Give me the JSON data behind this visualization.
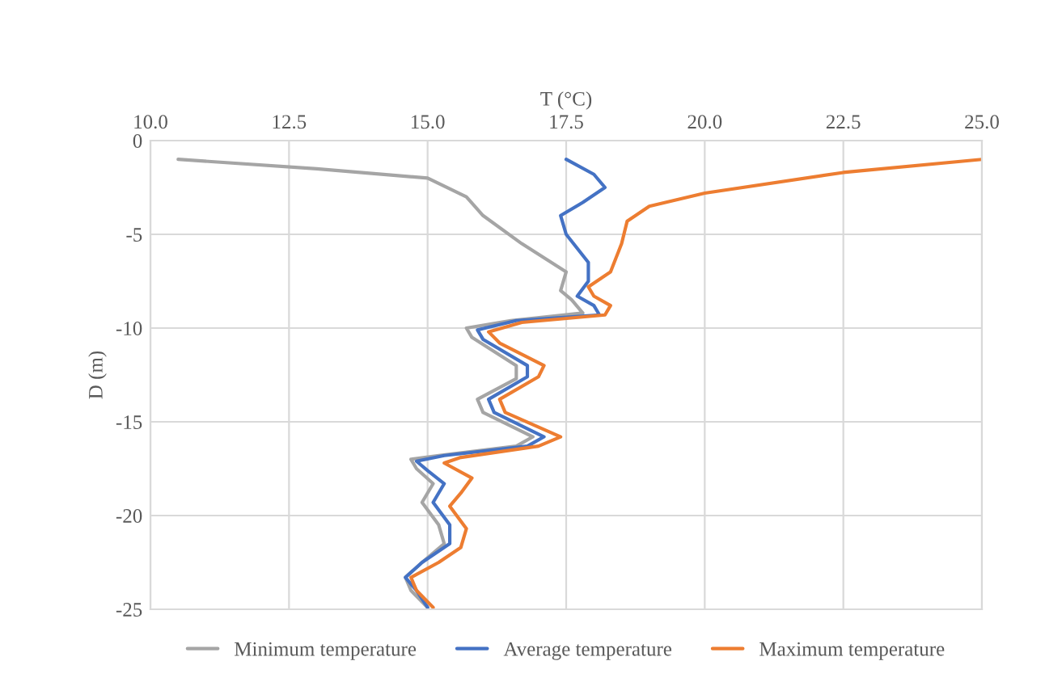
{
  "chart_data": {
    "type": "line",
    "xlabel": "T (°C)",
    "ylabel": "D (m)",
    "xlim": [
      10,
      25
    ],
    "xticks": [
      {
        "value": 10,
        "label": "10.0"
      },
      12.5,
      {
        "value": 15,
        "label": "15.0"
      },
      17.5,
      {
        "value": 20,
        "label": "20.0"
      },
      22.5,
      {
        "value": 25,
        "label": "25.0"
      }
    ],
    "ylim": [
      -25,
      0
    ],
    "yticks": [
      -25,
      -20,
      -15,
      -10,
      -5,
      0
    ],
    "grid": true,
    "legend": "bottom",
    "marker": "none",
    "line_style": "solid",
    "series": [
      {
        "name": "Minimum temperature",
        "color": "#a5a5a5",
        "x": [
          10.5,
          13,
          15,
          15.7,
          16,
          16.7,
          17.5,
          17.4,
          17.6,
          17.8,
          16.5,
          15.7,
          15.8,
          16.6,
          16.6,
          15.9,
          16,
          16.9,
          16.6,
          15.2,
          14.7,
          14.8,
          15.1,
          14.9,
          15.2,
          15.3,
          14.9,
          14.6,
          14.7,
          15
        ],
        "values": [
          -1,
          -1.5,
          -2,
          -3,
          -4,
          -5.5,
          -7,
          -8,
          -8.5,
          -9.2,
          -9.6,
          -10,
          -10.5,
          -12,
          -12.7,
          -13.8,
          -14.5,
          -15.8,
          -16.3,
          -16.8,
          -17,
          -17.5,
          -18.3,
          -19.3,
          -20.5,
          -21.5,
          -22.5,
          -23.3,
          -24,
          -24.9
        ]
      },
      {
        "name": "Average temperature",
        "color": "#4472c4",
        "x": [
          17.5,
          18,
          18.2,
          17.8,
          17.4,
          17.5,
          17.9,
          17.9,
          17.7,
          18,
          18.1,
          16.6,
          15.9,
          16,
          16.8,
          16.8,
          16.1,
          16.2,
          17.1,
          16.8,
          15.3,
          14.8,
          15,
          15.3,
          15.1,
          15.4,
          15.4,
          14.9,
          14.6,
          14.8,
          15
        ],
        "values": [
          -1,
          -1.8,
          -2.5,
          -3.3,
          -4,
          -5,
          -6.5,
          -7.5,
          -8.3,
          -8.8,
          -9.3,
          -9.6,
          -10.1,
          -10.6,
          -12,
          -12.6,
          -13.8,
          -14.5,
          -15.8,
          -16.3,
          -16.8,
          -17.1,
          -17.6,
          -18.3,
          -19.3,
          -20.5,
          -21.5,
          -22.5,
          -23.3,
          -24,
          -24.9
        ]
      },
      {
        "name": "Maximum temperature",
        "color": "#ed7d31",
        "x": [
          25,
          22.5,
          20,
          19,
          18.6,
          18.5,
          18.3,
          17.9,
          18,
          18.3,
          18.2,
          16.7,
          16.1,
          16.3,
          17.1,
          17,
          16.3,
          16.4,
          17.4,
          17,
          15.6,
          15.3,
          15.8,
          15.6,
          15.4,
          15.7,
          15.6,
          15.2,
          14.7,
          14.8,
          15.1
        ],
        "values": [
          -1,
          -1.7,
          -2.8,
          -3.5,
          -4.3,
          -5.5,
          -7,
          -7.8,
          -8.3,
          -8.8,
          -9.3,
          -9.7,
          -10.2,
          -10.8,
          -12,
          -12.6,
          -13.8,
          -14.5,
          -15.8,
          -16.3,
          -16.9,
          -17.2,
          -18,
          -18.8,
          -19.5,
          -20.7,
          -21.7,
          -22.5,
          -23.3,
          -24,
          -24.9
        ]
      }
    ]
  }
}
